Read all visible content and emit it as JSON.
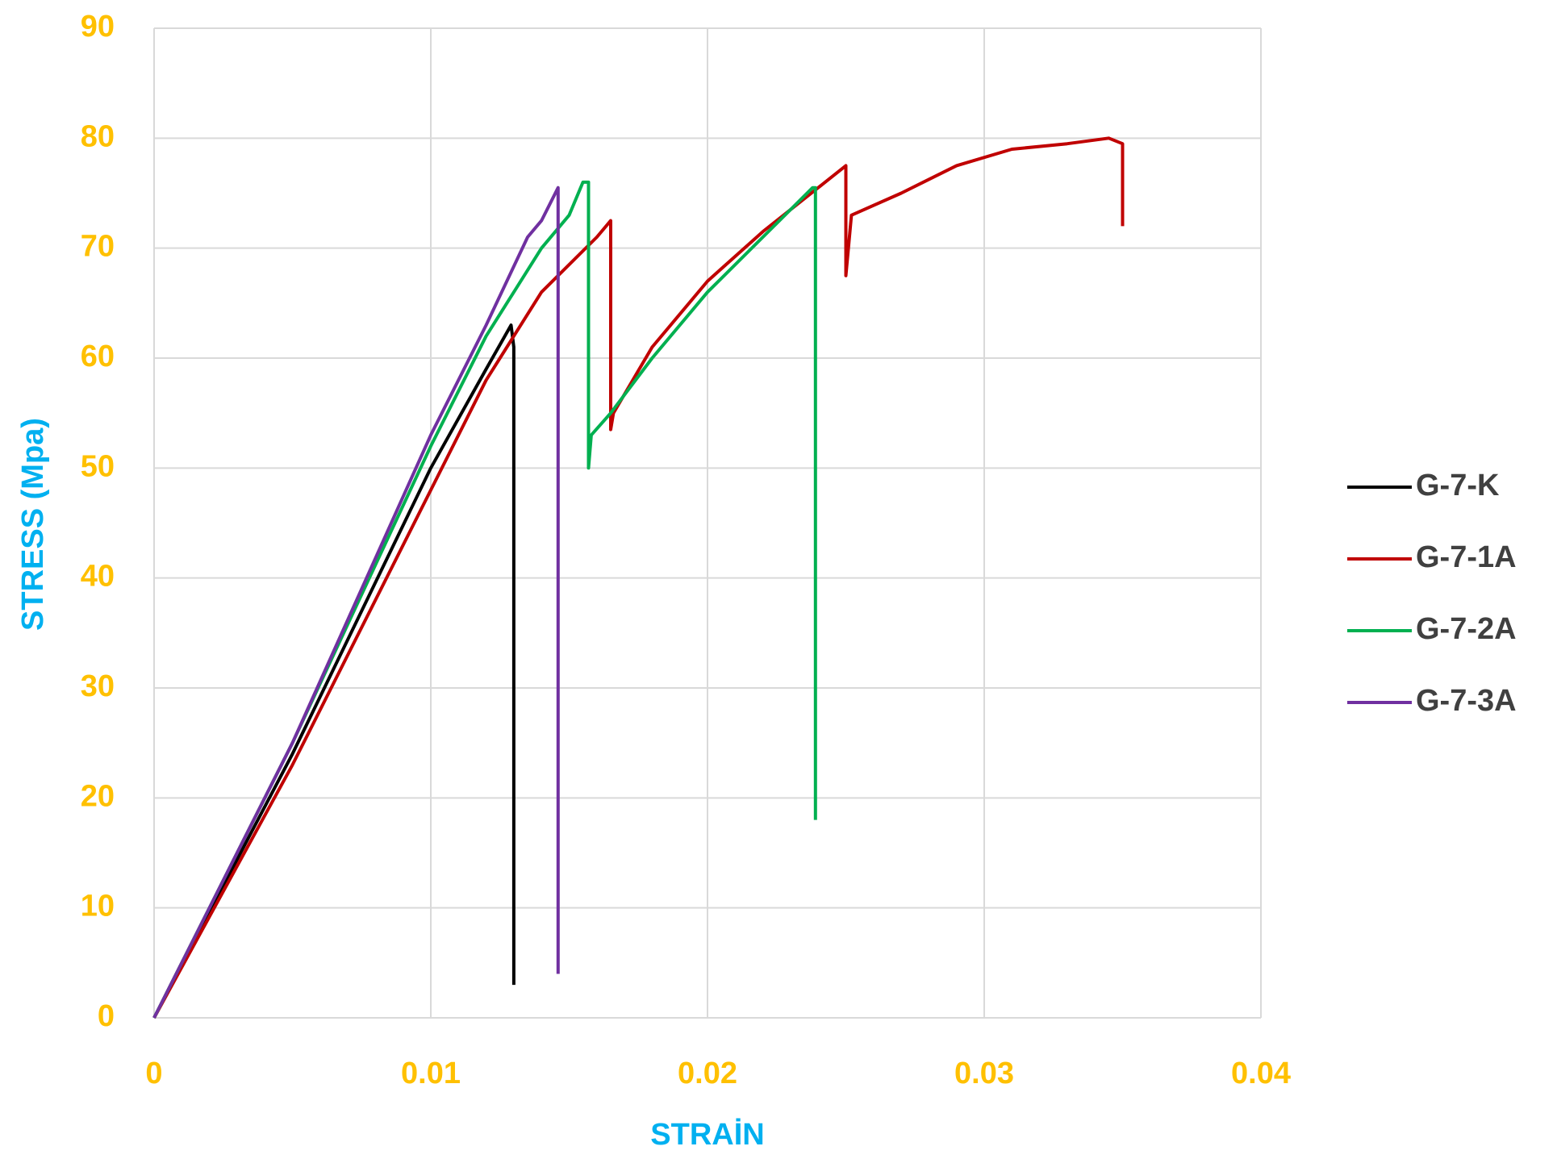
{
  "chart_data": {
    "type": "line",
    "xlabel": "STRAİN",
    "ylabel": "STRESS (Mpa)",
    "xlim": [
      0,
      0.04
    ],
    "xticks": [
      0,
      0.01,
      0.02,
      0.03,
      0.04
    ],
    "ylim": [
      0,
      90
    ],
    "yticks": [
      0,
      10,
      20,
      30,
      40,
      50,
      60,
      70,
      80,
      90
    ],
    "grid": true,
    "legend": "right",
    "series": [
      {
        "name": "G-7-K",
        "color": "#000000",
        "x": [
          0,
          0.005,
          0.01,
          0.012,
          0.0129,
          0.013,
          0.013
        ],
        "values": [
          0,
          24,
          50,
          59,
          63,
          61,
          3
        ]
      },
      {
        "name": "G-7-1A",
        "color": "#c00000",
        "x": [
          0,
          0.005,
          0.01,
          0.012,
          0.014,
          0.016,
          0.0165,
          0.0165,
          0.0166,
          0.018,
          0.02,
          0.022,
          0.024,
          0.025,
          0.025,
          0.0252,
          0.027,
          0.029,
          0.031,
          0.033,
          0.0345,
          0.035,
          0.035
        ],
        "values": [
          0,
          23,
          48,
          58,
          66,
          71,
          72.5,
          53.5,
          55,
          61,
          67,
          71.5,
          75.5,
          77.5,
          67.5,
          73,
          75,
          77.5,
          79,
          79.5,
          80,
          79.5,
          72
        ]
      },
      {
        "name": "G-7-2A",
        "color": "#00b050",
        "x": [
          0,
          0.005,
          0.01,
          0.012,
          0.014,
          0.015,
          0.0155,
          0.0157,
          0.0157,
          0.0158,
          0.0165,
          0.018,
          0.02,
          0.022,
          0.0238,
          0.0239,
          0.0239
        ],
        "values": [
          0,
          25,
          52,
          62,
          70,
          73,
          76,
          76,
          50,
          53,
          55,
          60,
          66,
          71,
          75.5,
          75.5,
          18
        ]
      },
      {
        "name": "G-7-3A",
        "color": "#7030a0",
        "x": [
          0,
          0.005,
          0.01,
          0.012,
          0.0135,
          0.014,
          0.0146,
          0.0146
        ],
        "values": [
          0,
          25,
          53,
          63,
          71,
          72.5,
          75.5,
          4
        ]
      }
    ]
  }
}
